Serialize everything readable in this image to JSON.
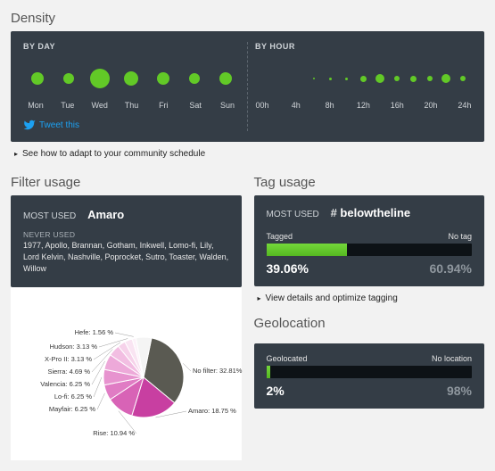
{
  "density": {
    "title": "Density",
    "by_day": {
      "header": "BY DAY",
      "labels": [
        "Mon",
        "Tue",
        "Wed",
        "Thu",
        "Fri",
        "Sat",
        "Sun"
      ],
      "sizes": [
        14,
        12,
        22,
        16,
        14,
        12,
        14
      ],
      "color": "#62c927"
    },
    "by_hour": {
      "header": "BY HOUR",
      "labels": [
        "00h",
        "4h",
        "8h",
        "12h",
        "16h",
        "20h",
        "24h"
      ],
      "sizes": [
        0,
        0,
        0,
        2,
        3,
        3,
        7,
        10,
        6,
        7,
        6,
        10,
        6
      ],
      "color": "#62c927"
    },
    "tweet": "Tweet this",
    "link": "See how to adapt to your community schedule"
  },
  "filter": {
    "title": "Filter usage",
    "most_used_label": "MOST USED",
    "most_used_value": "Amaro",
    "never_label": "NEVER USED",
    "never_list": "1977, Apollo, Brannan, Gotham, Inkwell, Lomo-fi, Lily, Lord Kelvin, Nashville, Poprocket, Sutro, Toaster, Walden, Willow",
    "pie": {
      "type": "pie",
      "slices": [
        {
          "label": "No filter",
          "value": 32.81,
          "display": "No filter: 32.81%",
          "color": "#5a5a52"
        },
        {
          "label": "Amaro",
          "value": 18.75,
          "display": "Amaro: 18.75 %",
          "color": "#c83fa1"
        },
        {
          "label": "Rise",
          "value": 10.94,
          "display": "Rise: 10.94 %",
          "color": "#d863b6"
        },
        {
          "label": "Mayfair",
          "value": 6.25,
          "display": "Mayfair: 6.25 %",
          "color": "#e07cc4"
        },
        {
          "label": "Lo-fi",
          "value": 6.25,
          "display": "Lo-fi: 6.25 %",
          "color": "#e793cf"
        },
        {
          "label": "Valencia",
          "value": 6.25,
          "display": "Valencia: 6.25 %",
          "color": "#eda9d9"
        },
        {
          "label": "Sierra",
          "value": 4.69,
          "display": "Sierra: 4.69 %",
          "color": "#f2bee2"
        },
        {
          "label": "X-Pro II",
          "value": 3.13,
          "display": "X-Pro II: 3.13 %",
          "color": "#f6d2ea"
        },
        {
          "label": "Hudson",
          "value": 3.13,
          "display": "Hudson: 3.13 %",
          "color": "#f9e4f2"
        },
        {
          "label": "Hefe",
          "value": 1.56,
          "display": "Hefe: 1.56 %",
          "color": "#fcf2f9"
        }
      ],
      "other_value": 6.24,
      "other_color": "#f4f4f4",
      "label_fontsize": 7.5,
      "label_color": "#333333"
    }
  },
  "tag": {
    "title": "Tag usage",
    "most_used_label": "MOST USED",
    "hash": "#",
    "most_used_value": "belowtheline",
    "bar": {
      "left_label": "Tagged",
      "right_label": "No tag",
      "left_pct": 39.06,
      "right_pct": 60.94,
      "left_display": "39.06%",
      "right_display": "60.94%",
      "fill_color": "#62c927",
      "bg_color": "#0d1216"
    },
    "link": "View details and optimize tagging"
  },
  "geo": {
    "title": "Geolocation",
    "bar": {
      "left_label": "Geolocated",
      "right_label": "No location",
      "left_pct": 2,
      "right_pct": 98,
      "left_display": "2%",
      "right_display": "98%",
      "fill_color": "#62c927",
      "bg_color": "#0d1216"
    }
  },
  "colors": {
    "panel_bg": "#343d46",
    "page_bg": "#f2f2f2",
    "accent": "#62c927"
  }
}
